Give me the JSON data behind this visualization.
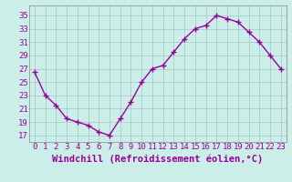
{
  "x": [
    0,
    1,
    2,
    3,
    4,
    5,
    6,
    7,
    8,
    9,
    10,
    11,
    12,
    13,
    14,
    15,
    16,
    17,
    18,
    19,
    20,
    21,
    22,
    23
  ],
  "y": [
    26.5,
    23.0,
    21.5,
    19.5,
    19.0,
    18.5,
    17.5,
    17.0,
    19.5,
    22.0,
    25.0,
    27.0,
    27.5,
    29.5,
    31.5,
    33.0,
    33.5,
    35.0,
    34.5,
    34.0,
    32.5,
    31.0,
    29.0,
    27.0
  ],
  "line_color": "#990099",
  "marker": "+",
  "bg_color": "#cceee8",
  "grid_color": "#aacccc",
  "xlabel": "Windchill (Refroidissement éolien,°C)",
  "yticks": [
    17,
    19,
    21,
    23,
    25,
    27,
    29,
    31,
    33,
    35
  ],
  "xticks": [
    0,
    1,
    2,
    3,
    4,
    5,
    6,
    7,
    8,
    9,
    10,
    11,
    12,
    13,
    14,
    15,
    16,
    17,
    18,
    19,
    20,
    21,
    22,
    23
  ],
  "xlim": [
    -0.5,
    23.5
  ],
  "ylim": [
    16.0,
    36.5
  ],
  "xlabel_fontsize": 7.5,
  "tick_fontsize": 6.5,
  "line_width": 1.0,
  "marker_size": 4,
  "tick_color": "#990099"
}
